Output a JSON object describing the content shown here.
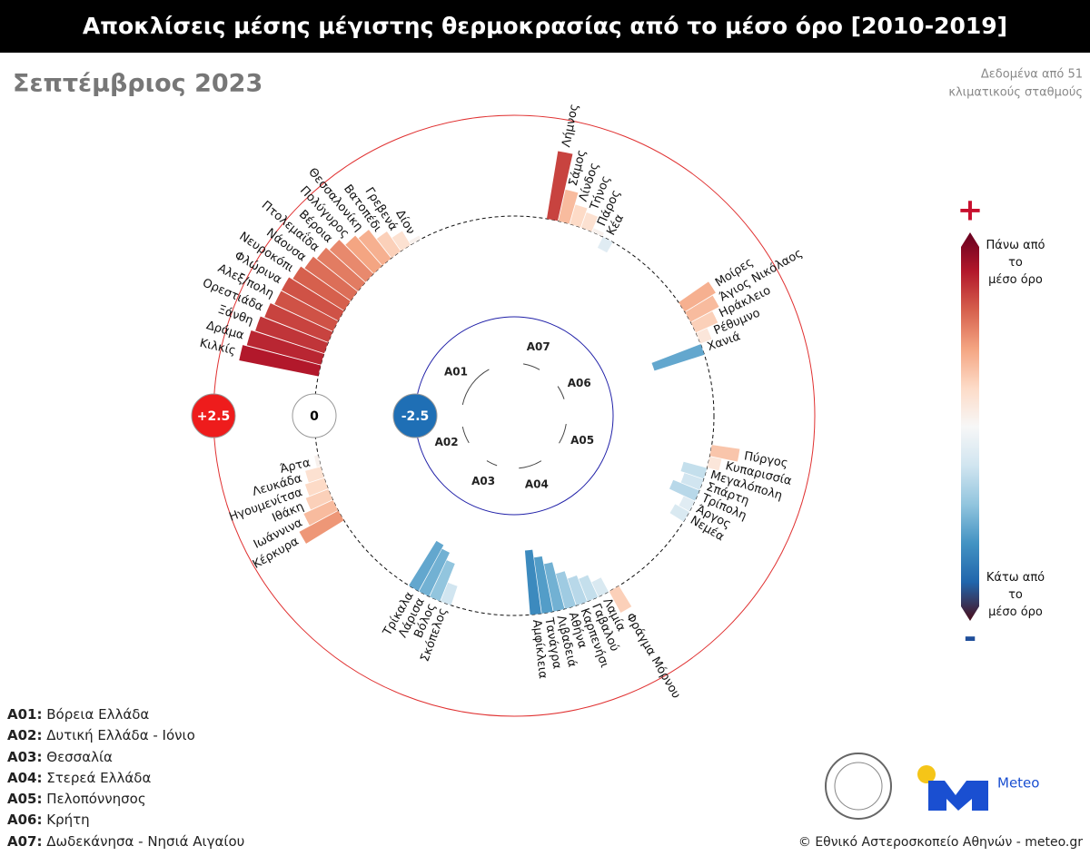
{
  "chart_data": {
    "type": "radial-bar",
    "title": "Αποκλίσεις μέσης μέγιστης θερμοκρασίας από το μέσο όρο [2010-2019]",
    "subtitle": "Σεπτέμβριος 2023",
    "note": [
      "Δεδομένα από 51",
      "κλιματικούς σταθμούς"
    ],
    "rlim": [
      -2.5,
      2.5
    ],
    "rticks": [
      {
        "value": -2.5,
        "label": "-2.5"
      },
      0,
      {
        "value": 2.5,
        "label": "+2.5"
      }
    ],
    "ring_colors": [
      "#2020a8",
      "#111111",
      "#e03030"
    ],
    "ring_fills": [
      "#1f6fb5",
      "#ffffff",
      "#ee1c1c"
    ],
    "ring_styles": [
      "solid",
      "dashed",
      "solid"
    ],
    "colors": [
      "#4a0d1a",
      "#2166ac",
      "#4393c3",
      "#92c5de",
      "#d1e5f0",
      "#f7f7f7",
      "#fddbc7",
      "#f4a582",
      "#d6604d",
      "#b2182b",
      "#67001f"
    ],
    "colorbar": {
      "plus": "+",
      "minus": "-",
      "above": "Πάνω από το μέσο όρο",
      "below": "Κάτω από το μέσο όρο"
    },
    "regions": [
      {
        "code": "A01",
        "name": "Βόρεια Ελλάδα",
        "stations": [
          "Κιλκίς",
          "Δράμα",
          "Ξάνθη",
          "Ορεστιάδα",
          "Αλεξ/πολη",
          "Φλώρινα",
          "Νευροκόπι",
          "Νάουσα",
          "Πτολεμαΐδα",
          "Βέροια",
          "Πολύγυρος",
          "Θεσσαλονίκη",
          "Βατοπέδι",
          "Γρεβενά",
          "Δίον"
        ],
        "values": [
          2.0,
          1.9,
          1.8,
          1.7,
          1.6,
          1.6,
          1.5,
          1.4,
          1.3,
          1.2,
          1.0,
          0.9,
          0.6,
          0.4,
          0.1
        ]
      },
      {
        "code": "A02",
        "name": "Δυτική Ελλάδα - Ιόνιο",
        "stations": [
          "Κέρκυρα",
          "Ιωάννινα",
          "Ιθάκη",
          "Ηγουμενίτσα",
          "Λευκάδα",
          "Άρτα"
        ],
        "values": [
          1.1,
          0.8,
          0.6,
          0.5,
          0.4,
          0.1
        ]
      },
      {
        "code": "A03",
        "name": "Θεσσαλία",
        "stations": [
          "Σκόπελος",
          "Βόλος",
          "Λάρισα",
          "Τρίκαλα"
        ],
        "values": [
          -0.5,
          -1.0,
          -1.2,
          -1.3
        ]
      },
      {
        "code": "A04",
        "name": "Στερεά Ελλάδα",
        "stations": [
          "Φράγμα Μόρνου",
          "Λαμία",
          "Γαβαλού",
          "Καρπενήσι",
          "Αθήνα",
          "Λιβαδειά",
          "Τανάγρα",
          "Αμφίκλεια"
        ],
        "values": [
          0.6,
          -0.4,
          -0.6,
          -0.7,
          -0.9,
          -1.2,
          -1.4,
          -1.6
        ]
      },
      {
        "code": "A05",
        "name": "Πελοπόννησος",
        "stations": [
          "Πύργος",
          "Κυπαρισσία",
          "Μεγαλόπολη",
          "Σπάρτη",
          "Τρίπολη",
          "Άργος",
          "Νεμέα"
        ],
        "values": [
          0.7,
          0.3,
          -0.6,
          -0.5,
          -0.7,
          -0.3,
          -0.4
        ]
      },
      {
        "code": "A06",
        "name": "Κρήτη",
        "stations": [
          "Μοίρες",
          "Άγιος Νικόλαος",
          "Ηράκλειο",
          "Ρέθυμνο",
          "Χανιά"
        ],
        "values": [
          0.9,
          0.8,
          0.6,
          0.3,
          -1.3
        ]
      },
      {
        "code": "A07",
        "name": "Δωδεκάνησα - Νησιά Αιγαίου",
        "stations": [
          "Λήμνος",
          "Σάμος",
          "Λίνδος",
          "Τήνος",
          "Πάρος",
          "Κέα"
        ],
        "values": [
          1.7,
          0.8,
          0.5,
          0.4,
          0.1,
          -0.3
        ]
      }
    ],
    "credit": "© Εθνικό Αστεροσκοπείο Αθηνών - meteo.gr",
    "logo_text": "Meteo"
  }
}
